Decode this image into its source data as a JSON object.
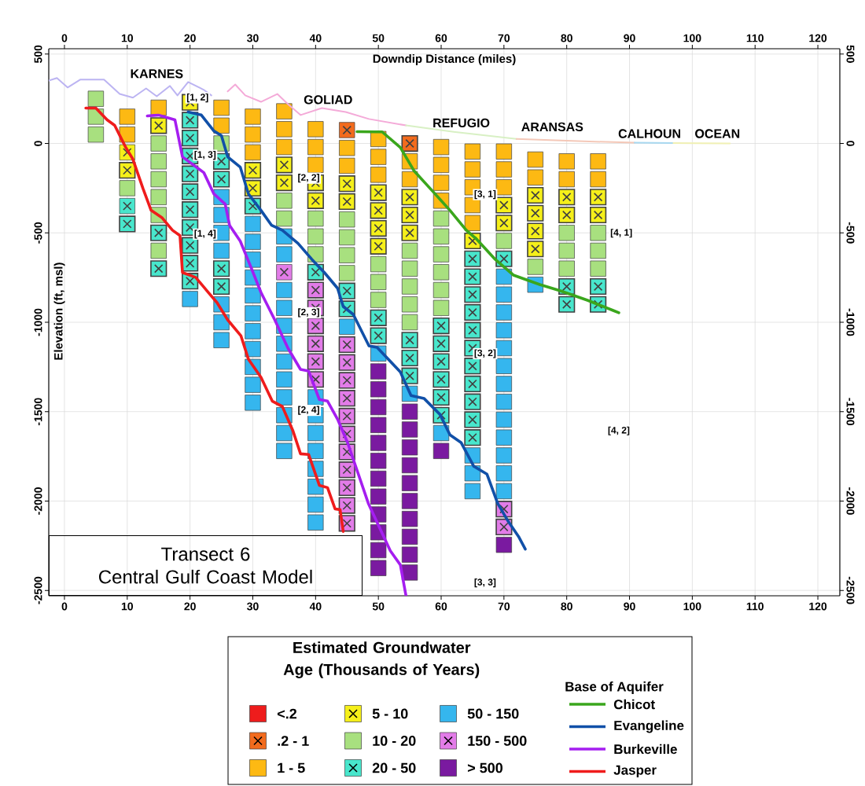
{
  "chart_data": {
    "type": "scatter",
    "title": "Transect 6",
    "subtitle": "Central  Gulf Coast Model",
    "xlabel": "Downdip Distance (miles)",
    "ylabel": "Elevation (ft, msl)",
    "legend_title": "Estimated Groundwater Age (Thousands of Years)",
    "annotations": [
      "KARNES",
      "GOLIAD",
      "REFUGIO",
      "ARANSAS",
      "CALHOUN",
      "OCEAN",
      {
        "text": "[1, 2]",
        "x": 21.2,
        "y": 255
      },
      {
        "text": "[1, 3]",
        "x": 22.4,
        "y": -66
      },
      {
        "text": "[1, 4]",
        "x": 22.4,
        "y": -507
      },
      {
        "text": "[2, 2]",
        "x": 38.9,
        "y": -194
      },
      {
        "text": "[2, 3]",
        "x": 38.9,
        "y": -947
      },
      {
        "text": "[2, 4]",
        "x": 38.9,
        "y": -1493
      },
      {
        "text": "[3, 1]",
        "x": 67,
        "y": -286
      },
      {
        "text": "[3, 2]",
        "x": 67,
        "y": -1176
      },
      {
        "text": "[3, 3]",
        "x": 67,
        "y": -2458
      },
      {
        "text": "[4, 1]",
        "x": 88.7,
        "y": -502
      },
      {
        "text": "[4, 2]",
        "x": 88.3,
        "y": -1608
      },
      "Base of Aquifer"
    ],
    "xlim": [
      -2.5,
      123.5
    ],
    "ylim": [
      -2530,
      530
    ],
    "xticks": [
      0,
      10,
      20,
      30,
      40,
      50,
      60,
      70,
      80,
      90,
      100,
      110,
      120
    ],
    "yticks": [
      500,
      0,
      -500,
      -1000,
      -1500,
      -2000,
      -2500
    ],
    "x2lim": [
      -2.5,
      123.5
    ],
    "y2lim": [
      -2530,
      530
    ],
    "x2ticks": [
      0,
      10,
      20,
      30,
      40,
      50,
      60,
      70,
      80,
      90,
      100,
      110,
      120
    ],
    "y2ticks": [
      500,
      0,
      -500,
      -1000,
      -1500,
      -2000,
      -2500
    ],
    "grid": true,
    "legend": "bottom",
    "series": [
      {
        "name": "<.2",
        "color": "#ee1c1c",
        "marker": "square"
      },
      {
        "name": ".2 - 1",
        "color": "#f26b1d",
        "x": [
          45,
          55
        ],
        "values": [
          75,
          0
        ]
      },
      {
        "name": "1 - 5",
        "color": "#fdb913",
        "marker": "square",
        "x": [
          10,
          10,
          15,
          25,
          25,
          30,
          30,
          30,
          35,
          35,
          35,
          40,
          40,
          40,
          45,
          45,
          50,
          50,
          50,
          55,
          55,
          60,
          60,
          60,
          60,
          65,
          65,
          65,
          65,
          65,
          70,
          70,
          70,
          75,
          75,
          80,
          80,
          85,
          85
        ],
        "values": [
          150,
          50,
          200,
          200,
          100,
          150,
          50,
          -50,
          180,
          80,
          -20,
          80,
          -20,
          -120,
          -25,
          -125,
          25,
          -75,
          -175,
          -100,
          -200,
          -20,
          -120,
          -220,
          -320,
          -45,
          -145,
          -245,
          -345,
          -445,
          -45,
          -145,
          -245,
          -90,
          -190,
          -100,
          -200,
          -100,
          -200
        ]
      },
      {
        "name": "5 - 10",
        "color": "#f5ef1a",
        "x": [
          10,
          10,
          15,
          20,
          30,
          30,
          35,
          35,
          40,
          40,
          45,
          45,
          50,
          50,
          50,
          50,
          55,
          55,
          55,
          65,
          70,
          70,
          75,
          75,
          75,
          75,
          80,
          80,
          85,
          85
        ],
        "values": [
          -50,
          -150,
          100,
          230,
          -150,
          -250,
          -120,
          -220,
          -220,
          -320,
          -225,
          -325,
          -275,
          -375,
          -475,
          -575,
          -300,
          -400,
          -500,
          -545,
          -345,
          -445,
          -290,
          -390,
          -490,
          -590,
          -300,
          -400,
          -300,
          -400
        ]
      },
      {
        "name": "10 - 20",
        "color": "#a8e07f",
        "marker": "square",
        "x": [
          5,
          5,
          5,
          10,
          15,
          15,
          15,
          15,
          15,
          15,
          25,
          35,
          35,
          40,
          40,
          40,
          45,
          45,
          45,
          45,
          50,
          50,
          50,
          55,
          55,
          55,
          55,
          55,
          60,
          60,
          60,
          60,
          60,
          60,
          70,
          75,
          80,
          80,
          80,
          85,
          85,
          85
        ],
        "values": [
          250,
          150,
          50,
          -250,
          0,
          -100,
          -200,
          -300,
          -400,
          -600,
          0,
          -320,
          -420,
          -420,
          -520,
          -620,
          -425,
          -525,
          -625,
          -725,
          -675,
          -775,
          -875,
          -600,
          -700,
          -800,
          -900,
          -1000,
          -420,
          -520,
          -620,
          -720,
          -820,
          -920,
          -545,
          -690,
          -500,
          -600,
          -700,
          -500,
          -600,
          -700
        ]
      },
      {
        "name": "20 - 50",
        "color": "#48e6cc",
        "x": [
          10,
          10,
          15,
          15,
          20,
          20,
          20,
          20,
          20,
          20,
          20,
          20,
          20,
          20,
          25,
          25,
          25,
          25,
          30,
          40,
          45,
          45,
          50,
          50,
          55,
          55,
          55,
          60,
          60,
          60,
          60,
          60,
          60,
          65,
          65,
          65,
          65,
          65,
          65,
          65,
          65,
          65,
          65,
          65,
          70,
          80,
          80,
          85,
          85
        ],
        "values": [
          -350,
          -450,
          -500,
          -700,
          130,
          30,
          -70,
          -170,
          -270,
          -370,
          -470,
          -570,
          -670,
          -770,
          -100,
          -200,
          -700,
          -800,
          -350,
          -720,
          -825,
          -925,
          -975,
          -1075,
          -1100,
          -1200,
          -1300,
          -1020,
          -1120,
          -1220,
          -1320,
          -1420,
          -1520,
          -645,
          -745,
          -845,
          -945,
          -1045,
          -1145,
          -1245,
          -1345,
          -1445,
          -1545,
          -1645,
          -645,
          -800,
          -900,
          -800,
          -900
        ]
      },
      {
        "name": "50 - 150",
        "color": "#35b6ee",
        "marker": "square",
        "x": [
          20,
          25,
          25,
          25,
          25,
          25,
          25,
          25,
          30,
          30,
          30,
          30,
          30,
          30,
          30,
          30,
          30,
          30,
          30,
          35,
          35,
          35,
          35,
          35,
          35,
          35,
          35,
          35,
          35,
          35,
          35,
          40,
          40,
          40,
          40,
          40,
          40,
          40,
          40,
          45,
          50,
          55,
          60,
          65,
          65,
          65,
          70,
          70,
          70,
          70,
          70,
          70,
          70,
          70,
          70,
          70,
          70,
          70,
          70,
          75
        ],
        "values": [
          -870,
          -300,
          -400,
          -500,
          -600,
          -900,
          -1000,
          -1100,
          -450,
          -550,
          -650,
          -750,
          -850,
          -950,
          -1050,
          -1150,
          -1250,
          -1350,
          -1450,
          -520,
          -620,
          -820,
          -920,
          -1020,
          -1120,
          -1220,
          -1320,
          -1420,
          -1520,
          -1620,
          -1720,
          -1420,
          -1520,
          -1620,
          -1720,
          -1820,
          -1920,
          -2020,
          -2120,
          -1025,
          -1175,
          -1400,
          -1620,
          -1745,
          -1845,
          -1945,
          -745,
          -845,
          -945,
          -1045,
          -1145,
          -1245,
          -1345,
          -1445,
          -1545,
          -1645,
          -1745,
          -1845,
          -1945,
          -790
        ]
      },
      {
        "name": "150 - 500",
        "color": "#e27ce8",
        "x": [
          35,
          40,
          40,
          40,
          40,
          40,
          40,
          45,
          45,
          45,
          45,
          45,
          45,
          45,
          45,
          45,
          45,
          45,
          70,
          70
        ],
        "values": [
          -720,
          -820,
          -920,
          -1020,
          -1120,
          -1220,
          -1320,
          -1125,
          -1225,
          -1325,
          -1425,
          -1525,
          -1625,
          -1725,
          -1825,
          -1925,
          -2025,
          -2125,
          -2045,
          -2145
        ]
      },
      {
        "name": "> 500",
        "color": "#7a1aa0",
        "marker": "square",
        "x": [
          50,
          50,
          50,
          50,
          50,
          50,
          50,
          50,
          50,
          50,
          50,
          50,
          55,
          55,
          55,
          55,
          55,
          55,
          55,
          55,
          55,
          55,
          60,
          70
        ],
        "values": [
          -1275,
          -1375,
          -1475,
          -1575,
          -1675,
          -1775,
          -1875,
          -1975,
          -2075,
          -2175,
          -2275,
          -2375,
          -1500,
          -1600,
          -1700,
          -1800,
          -1900,
          -2000,
          -2100,
          -2200,
          -2300,
          -2400,
          -1720,
          -2245
        ]
      },
      {
        "color": "#bcb4f2",
        "type": "line",
        "x": [
          -2.5,
          -1.2,
          0.5,
          2.5,
          6.3,
          8.8,
          10.9,
          13,
          14.7,
          16.8,
          18,
          19.7,
          22.2,
          23.4
        ],
        "values": [
          352,
          366,
          313,
          357,
          357,
          277,
          256,
          308,
          264,
          322,
          269,
          344,
          300,
          269
        ]
      },
      {
        "color": "#f4aad8",
        "type": "line",
        "x": [
          26,
          27.2,
          28.8,
          31.3,
          33.9,
          35.6,
          37.6,
          41,
          44.8,
          48.5,
          54.4
        ],
        "values": [
          291,
          330,
          269,
          233,
          277,
          220,
          159,
          198,
          176,
          137,
          101
        ]
      },
      {
        "color": "#d8f0c4",
        "type": "line",
        "x": [
          54.4,
          62,
          72
        ],
        "values": [
          101,
          65,
          25
        ]
      },
      {
        "color": "#f4c8b8",
        "type": "line",
        "x": [
          72,
          80,
          90.8
        ],
        "values": [
          25,
          15,
          4
        ]
      },
      {
        "color": "#a8d8f0",
        "type": "line",
        "x": [
          90.8,
          97
        ],
        "values": [
          4,
          2
        ]
      },
      {
        "color": "#f0f0b4",
        "type": "line",
        "x": [
          97,
          106
        ],
        "values": [
          2,
          0
        ]
      },
      {
        "name": "Chicot",
        "color": "#3aa61c",
        "type": "line",
        "x": [
          46.6,
          49.5,
          50.6,
          53.5,
          55.7,
          58.8,
          61.4,
          64,
          65.7,
          68.6,
          71.5,
          75.7,
          79,
          83.3,
          87.4,
          88.3
        ],
        "values": [
          66,
          65,
          65,
          -22,
          -154,
          -273,
          -374,
          -485,
          -537,
          -648,
          -736,
          -789,
          -824,
          -877,
          -934,
          -947
        ]
      },
      {
        "name": "Evangeline",
        "color": "#1150a8",
        "type": "line",
        "x": [
          19.7,
          21.8,
          23.8,
          25,
          26,
          28,
          29.3,
          31.3,
          33,
          34.7,
          37.2,
          39.4,
          41.4,
          43.5,
          44.4,
          46,
          48.5,
          49.8,
          53.5,
          55.2,
          57.3,
          59.8,
          61.4,
          63.2,
          65.2,
          67.3,
          69,
          70.7,
          72.4,
          73.4
        ],
        "values": [
          176,
          159,
          70,
          44,
          -75,
          -132,
          -282,
          -374,
          -458,
          -485,
          -559,
          -648,
          -722,
          -810,
          -912,
          -956,
          -1132,
          -1141,
          -1278,
          -1410,
          -1427,
          -1515,
          -1630,
          -1674,
          -1806,
          -1850,
          -2013,
          -2115,
          -2203,
          -2269
        ]
      },
      {
        "name": "Burkeville",
        "color": "#a51ef0",
        "type": "line",
        "x": [
          13.2,
          15,
          17.6,
          18.8,
          20.5,
          22.2,
          23.8,
          25.6,
          26.3,
          28,
          29.7,
          31.3,
          33.5,
          35.6,
          37.6,
          38.9,
          40.6,
          41.9,
          43.5,
          45.1,
          48.4,
          51.9,
          53.5,
          54.4
        ],
        "values": [
          154,
          159,
          132,
          -75,
          -119,
          -163,
          -282,
          -339,
          -458,
          -546,
          -692,
          -833,
          -987,
          -1145,
          -1264,
          -1273,
          -1432,
          -1441,
          -1542,
          -1674,
          -2013,
          -2278,
          -2357,
          -2530
        ]
      },
      {
        "name": "Jasper",
        "color": "#ef1c1c",
        "type": "line",
        "x": [
          3.4,
          5,
          6.8,
          8,
          9.7,
          10.9,
          12.5,
          13.8,
          15.5,
          17.2,
          18.4,
          18.8,
          20.9,
          23,
          24.3,
          26,
          28.1,
          29.3,
          31.3,
          33.1,
          34.7,
          36.4,
          37.6,
          38.9,
          40.6,
          41.9,
          43.1,
          43.9,
          44.4
        ],
        "values": [
          198,
          198,
          132,
          101,
          -18,
          -88,
          -251,
          -374,
          -414,
          -485,
          -515,
          -722,
          -749,
          -837,
          -890,
          -987,
          -1075,
          -1207,
          -1308,
          -1441,
          -1471,
          -1608,
          -1736,
          -1740,
          -1912,
          -1925,
          -2044,
          -2048,
          -2170
        ]
      }
    ]
  }
}
